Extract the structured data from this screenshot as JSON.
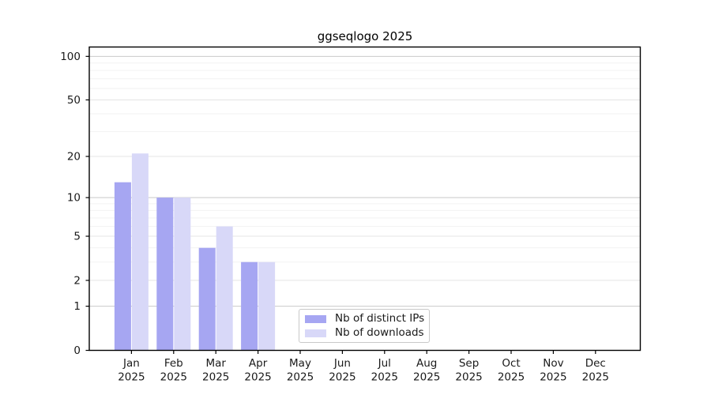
{
  "title": "ggseqlogo 2025",
  "chart_data": {
    "type": "bar",
    "title": "ggseqlogo 2025",
    "x_months": [
      "Jan",
      "Feb",
      "Mar",
      "Apr",
      "May",
      "Jun",
      "Jul",
      "Aug",
      "Sep",
      "Oct",
      "Nov",
      "Dec"
    ],
    "x_year": "2025",
    "series": [
      {
        "name": "Nb of distinct IPs",
        "color": "#a6a6f2",
        "values": [
          13,
          10,
          4,
          3,
          0,
          0,
          0,
          0,
          0,
          0,
          0,
          0
        ]
      },
      {
        "name": "Nb of downloads",
        "color": "#d8d8f8",
        "values": [
          21,
          10,
          6,
          3,
          0,
          0,
          0,
          0,
          0,
          0,
          0,
          0
        ]
      }
    ],
    "yscale": "log1p",
    "ylim": [
      0,
      116
    ],
    "yticks": [
      0,
      1,
      2,
      5,
      10,
      20,
      50,
      100
    ],
    "yticks_minor": [
      3,
      4,
      6,
      7,
      8,
      9,
      30,
      40,
      60,
      70,
      80,
      90
    ],
    "grid": true,
    "legend_position": "bottom-center",
    "colors": {
      "spine": "#000000",
      "tick": "#000000",
      "text": "#1a1a1a",
      "grid_power10": "#c9c9c9",
      "grid_labeled": "#e4e4e4",
      "grid_minor": "#f2f2f2",
      "background": "#ffffff"
    }
  }
}
